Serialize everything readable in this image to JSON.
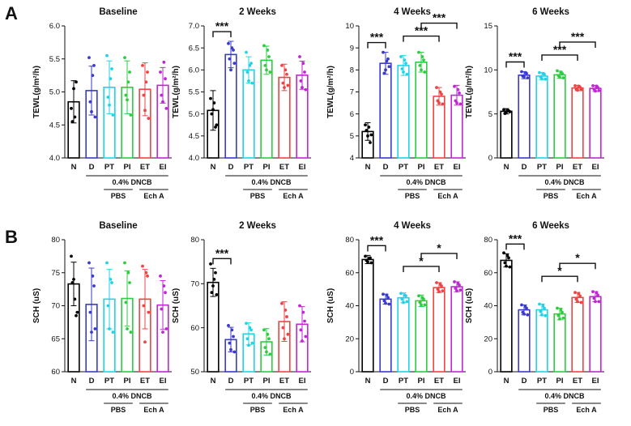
{
  "figure": {
    "panel_letters": [
      "A",
      "B"
    ]
  },
  "chart_data": [
    {
      "type": "bar",
      "panel": "A",
      "title": "Baseline",
      "ylabel": "TEWL(g/m²/h)",
      "categories": [
        "N",
        "D",
        "PT",
        "PI",
        "ET",
        "EI"
      ],
      "values": [
        4.85,
        5.02,
        5.07,
        5.07,
        5.04,
        5.1
      ],
      "errors": [
        0.32,
        0.37,
        0.4,
        0.4,
        0.4,
        0.27
      ],
      "points": [
        [
          4.75,
          5.05,
          5.15,
          4.55,
          4.62
        ],
        [
          5.52,
          4.7,
          5.4,
          4.85,
          5.25,
          4.62
        ],
        [
          5.55,
          4.8,
          5.35,
          4.92,
          5.2,
          4.65
        ],
        [
          5.52,
          4.88,
          5.3,
          4.95,
          5.15,
          4.65
        ],
        [
          5.4,
          4.72,
          5.3,
          4.95,
          5.15,
          4.6
        ],
        [
          5.3,
          4.85,
          5.2,
          4.95,
          5.45,
          4.75
        ]
      ],
      "ylim": [
        4.0,
        6.0
      ],
      "yticks": [
        4.0,
        4.5,
        5.0,
        5.5,
        6.0
      ],
      "significance": [],
      "group_label": "0.4% DNCB",
      "subgroups": [
        "PBS",
        "Ech A"
      ]
    },
    {
      "type": "bar",
      "panel": "A",
      "title": "2 Weeks",
      "ylabel": "TEWL(g/m²/h)",
      "categories": [
        "N",
        "D",
        "PT",
        "PI",
        "ET",
        "EI"
      ],
      "values": [
        5.08,
        6.35,
        6.0,
        6.22,
        5.83,
        5.88
      ],
      "errors": [
        0.45,
        0.3,
        0.3,
        0.32,
        0.3,
        0.32
      ],
      "points": [
        [
          5.35,
          5.1,
          4.7,
          5.0,
          5.25,
          4.75
        ],
        [
          6.6,
          6.0,
          6.45,
          6.25,
          6.5,
          6.15
        ],
        [
          6.4,
          5.75,
          6.15,
          5.95,
          6.1,
          5.7
        ],
        [
          6.55,
          6.0,
          6.3,
          6.1,
          6.45,
          5.95
        ],
        [
          6.1,
          5.6,
          5.9,
          5.7,
          6.0,
          5.65
        ],
        [
          6.3,
          5.6,
          5.95,
          5.75,
          6.15,
          5.55
        ]
      ],
      "ylim": [
        4.0,
        7.0
      ],
      "yticks": [
        4.0,
        4.5,
        5.0,
        5.5,
        6.0,
        6.5,
        7.0
      ],
      "significance": [
        {
          "from": 0,
          "to": 1,
          "label": "***"
        }
      ],
      "group_label": "0.4% DNCB",
      "subgroups": [
        "PBS",
        "Ech A"
      ]
    },
    {
      "type": "bar",
      "panel": "A",
      "title": "4 Weeks",
      "ylabel": "TEWL(g/m²/h)",
      "categories": [
        "N",
        "D",
        "PT",
        "PI",
        "ET",
        "EI"
      ],
      "values": [
        5.2,
        8.3,
        8.2,
        8.35,
        6.8,
        6.85
      ],
      "errors": [
        0.4,
        0.5,
        0.45,
        0.45,
        0.4,
        0.45
      ],
      "points": [
        [
          5.5,
          5.0,
          4.7,
          5.25,
          5.4,
          5.05
        ],
        [
          8.8,
          8.0,
          8.5,
          7.85,
          8.4,
          8.15
        ],
        [
          8.6,
          7.9,
          8.3,
          8.05,
          8.45,
          7.8
        ],
        [
          8.8,
          8.0,
          8.45,
          8.2,
          8.6,
          7.9
        ],
        [
          7.2,
          6.5,
          6.9,
          6.6,
          7.0,
          6.45
        ],
        [
          7.25,
          6.5,
          6.95,
          6.6,
          7.1,
          6.45
        ]
      ],
      "ylim": [
        4,
        10
      ],
      "yticks": [
        4,
        5,
        6,
        7,
        8,
        9,
        10
      ],
      "significance": [
        {
          "from": 0,
          "to": 1,
          "label": "***"
        },
        {
          "from": 2,
          "to": 4,
          "label": "***"
        },
        {
          "from": 3,
          "to": 5,
          "label": "***"
        }
      ],
      "group_label": "0.4% DNCB",
      "subgroups": [
        "PBS",
        "Ech A"
      ]
    },
    {
      "type": "bar",
      "panel": "A",
      "title": "6 Weeks",
      "ylabel": "TEWL(g/m²/h)",
      "categories": [
        "N",
        "D",
        "PT",
        "PI",
        "ET",
        "EI"
      ],
      "values": [
        5.3,
        9.4,
        9.3,
        9.45,
        7.95,
        7.9
      ],
      "errors": [
        0.3,
        0.4,
        0.4,
        0.4,
        0.3,
        0.35
      ],
      "points": [
        [
          5.5,
          5.2,
          5.35,
          5.05,
          5.45,
          5.25
        ],
        [
          9.8,
          9.2,
          9.6,
          9.3,
          9.7,
          9.1
        ],
        [
          9.7,
          9.0,
          9.5,
          9.2,
          9.6,
          8.95
        ],
        [
          9.9,
          9.2,
          9.6,
          9.35,
          9.75,
          9.1
        ],
        [
          8.2,
          7.7,
          8.05,
          7.85,
          8.15,
          7.75
        ],
        [
          8.2,
          7.6,
          8.0,
          7.8,
          8.15,
          7.65
        ]
      ],
      "ylim": [
        0,
        15
      ],
      "yticks": [
        0,
        5,
        10,
        15
      ],
      "significance": [
        {
          "from": 0,
          "to": 1,
          "label": "***"
        },
        {
          "from": 2,
          "to": 4,
          "label": "***"
        },
        {
          "from": 3,
          "to": 5,
          "label": "***"
        }
      ],
      "group_label": "0.4% DNCB",
      "subgroups": [
        "PBS",
        "Ech A"
      ]
    },
    {
      "type": "bar",
      "panel": "B",
      "title": "Baseline",
      "ylabel": "SCH (uS)",
      "categories": [
        "N",
        "D",
        "PT",
        "PI",
        "ET",
        "EI"
      ],
      "values": [
        73.3,
        70.2,
        71.0,
        71.1,
        71.0,
        70.1
      ],
      "errors": [
        3.3,
        5.5,
        4.5,
        4.2,
        4.5,
        3.7
      ],
      "points": [
        [
          77.5,
          74.0,
          68.5,
          73.5,
          71.0,
          69.0
        ],
        [
          76.5,
          66.0,
          73.0,
          69.0,
          74.5,
          66.5
        ],
        [
          76.5,
          66.5,
          73.5,
          70.0,
          74.0,
          66.0
        ],
        [
          76.5,
          66.5,
          73.5,
          70.5,
          75.0,
          66.0
        ],
        [
          76.0,
          64.5,
          74.5,
          70.0,
          75.0,
          69.0
        ],
        [
          74.5,
          66.0,
          72.0,
          69.5,
          73.0,
          66.5
        ]
      ],
      "ylim": [
        60,
        80
      ],
      "yticks": [
        60,
        65,
        70,
        75,
        80
      ],
      "significance": [],
      "group_label": "0.4% DNCB",
      "subgroups": [
        "PBS",
        "Ech A"
      ]
    },
    {
      "type": "bar",
      "panel": "B",
      "title": "2 Weeks",
      "ylabel": "SCH (uS)",
      "categories": [
        "N",
        "D",
        "PT",
        "PI",
        "ET",
        "EI"
      ],
      "values": [
        70.3,
        57.3,
        58.6,
        56.8,
        61.4,
        60.8
      ],
      "errors": [
        3.2,
        2.8,
        2.5,
        3.0,
        4.5,
        4.0
      ],
      "points": [
        [
          74.5,
          69.5,
          72.5,
          68.0,
          71.0,
          67.5
        ],
        [
          60.5,
          55.0,
          58.0,
          56.5,
          59.5,
          54.5
        ],
        [
          61.0,
          56.0,
          59.5,
          57.5,
          60.0,
          56.5
        ],
        [
          59.5,
          54.5,
          57.5,
          55.5,
          58.5,
          54.0
        ],
        [
          65.5,
          57.5,
          62.5,
          60.0,
          64.0,
          58.5
        ],
        [
          65.0,
          57.0,
          61.5,
          59.5,
          63.5,
          58.0
        ]
      ],
      "ylim": [
        50,
        80
      ],
      "yticks": [
        50,
        60,
        70,
        80
      ],
      "significance": [
        {
          "from": 0,
          "to": 1,
          "label": "***"
        }
      ],
      "group_label": "0.4% DNCB",
      "subgroups": [
        "PBS",
        "Ech A"
      ]
    },
    {
      "type": "bar",
      "panel": "B",
      "title": "4 Weeks",
      "ylabel": "SCH (uS)",
      "categories": [
        "N",
        "D",
        "PT",
        "PI",
        "ET",
        "EI"
      ],
      "values": [
        68.0,
        44.0,
        44.8,
        43.0,
        51.0,
        51.5
      ],
      "errors": [
        2.5,
        3.0,
        3.0,
        3.5,
        3.0,
        3.0
      ],
      "points": [
        [
          70.0,
          66.5,
          69.0,
          67.5,
          68.5,
          66.0
        ],
        [
          47.0,
          41.5,
          45.0,
          43.0,
          46.5,
          41.0
        ],
        [
          47.5,
          42.0,
          46.0,
          44.0,
          46.5,
          42.5
        ],
        [
          46.0,
          40.5,
          44.0,
          42.0,
          45.0,
          40.5
        ],
        [
          54.0,
          48.5,
          52.0,
          50.0,
          53.0,
          49.0
        ],
        [
          54.5,
          49.0,
          52.5,
          50.5,
          53.5,
          49.5
        ]
      ],
      "ylim": [
        0,
        80
      ],
      "yticks": [
        0,
        20,
        40,
        60,
        80
      ],
      "significance": [
        {
          "from": 0,
          "to": 1,
          "label": "***"
        },
        {
          "from": 2,
          "to": 4,
          "label": "*"
        },
        {
          "from": 3,
          "to": 5,
          "label": "*"
        }
      ],
      "group_label": "0.4% DNCB",
      "subgroups": [
        "PBS",
        "Ech A"
      ]
    },
    {
      "type": "bar",
      "panel": "B",
      "title": "6 Weeks",
      "ylabel": "SCH (uS)",
      "categories": [
        "N",
        "D",
        "PT",
        "PI",
        "ET",
        "EI"
      ],
      "values": [
        67.5,
        37.5,
        37.5,
        35.0,
        45.0,
        45.5
      ],
      "errors": [
        4.0,
        3.0,
        3.5,
        3.5,
        3.0,
        3.0
      ],
      "points": [
        [
          72.0,
          64.0,
          69.0,
          66.0,
          70.5,
          63.5
        ],
        [
          40.5,
          35.0,
          38.5,
          36.0,
          39.5,
          34.5
        ],
        [
          41.0,
          34.5,
          38.5,
          36.5,
          40.0,
          34.0
        ],
        [
          38.5,
          32.0,
          36.0,
          34.0,
          37.5,
          32.5
        ],
        [
          48.0,
          42.5,
          46.0,
          44.0,
          47.5,
          42.0
        ],
        [
          48.5,
          42.5,
          46.5,
          44.5,
          48.0,
          42.5
        ]
      ],
      "ylim": [
        0,
        80
      ],
      "yticks": [
        0,
        20,
        40,
        60,
        80
      ],
      "significance": [
        {
          "from": 0,
          "to": 1,
          "label": "***"
        },
        {
          "from": 2,
          "to": 4,
          "label": "*"
        },
        {
          "from": 3,
          "to": 5,
          "label": "*"
        }
      ],
      "group_label": "0.4% DNCB",
      "subgroups": [
        "PBS",
        "Ech A"
      ]
    }
  ],
  "colors": {
    "N": "#000000",
    "D": "#3a3acc",
    "PT": "#22d3e6",
    "PI": "#2ecc40",
    "ET": "#ef4444",
    "EI": "#c026d3"
  }
}
